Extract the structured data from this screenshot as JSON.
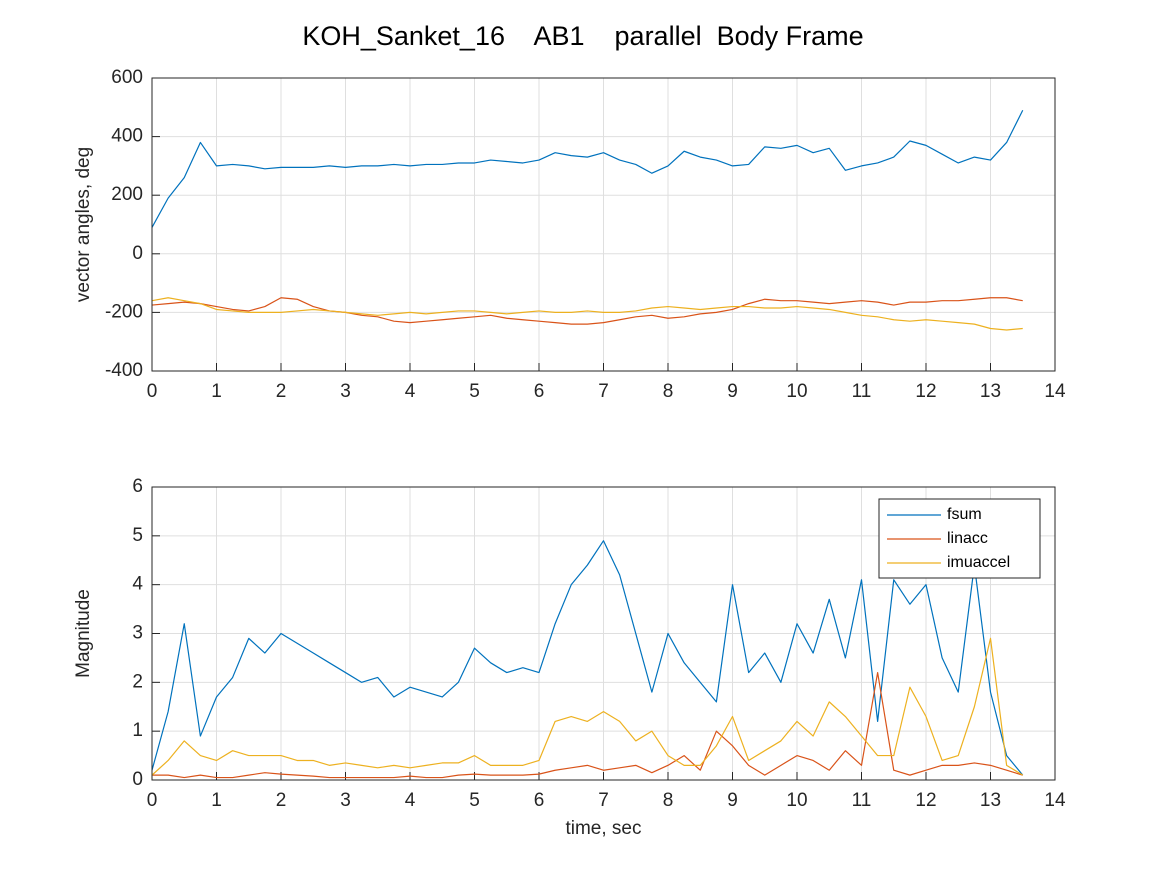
{
  "chart_data": [
    {
      "type": "line",
      "title": "KOH_Sanket_16    AB1    parallel  Body Frame",
      "ylabel": "vector angles, deg",
      "x": [
        0,
        0.25,
        0.5,
        0.75,
        1,
        1.25,
        1.5,
        1.75,
        2,
        2.25,
        2.5,
        2.75,
        3,
        3.25,
        3.5,
        3.75,
        4,
        4.25,
        4.5,
        4.75,
        5,
        5.25,
        5.5,
        5.75,
        6,
        6.25,
        6.5,
        6.75,
        7,
        7.25,
        7.5,
        7.75,
        8,
        8.25,
        8.5,
        8.75,
        9,
        9.25,
        9.5,
        9.75,
        10,
        10.25,
        10.5,
        10.75,
        11,
        11.25,
        11.5,
        11.75,
        12,
        12.25,
        12.5,
        12.75,
        13,
        13.25,
        13.5
      ],
      "series": [
        {
          "color": "#0072BD",
          "values": [
            90,
            190,
            260,
            380,
            300,
            305,
            300,
            290,
            295,
            295,
            295,
            300,
            295,
            300,
            300,
            305,
            300,
            305,
            305,
            310,
            310,
            320,
            315,
            310,
            320,
            345,
            335,
            330,
            345,
            320,
            305,
            275,
            300,
            350,
            330,
            320,
            300,
            305,
            365,
            360,
            370,
            345,
            360,
            285,
            300,
            310,
            330,
            385,
            370,
            340,
            310,
            330,
            320,
            380,
            490
          ]
        },
        {
          "color": "#D95319",
          "values": [
            -175,
            -170,
            -165,
            -170,
            -180,
            -190,
            -195,
            -180,
            -150,
            -155,
            -180,
            -195,
            -200,
            -210,
            -215,
            -230,
            -235,
            -230,
            -225,
            -220,
            -215,
            -210,
            -220,
            -225,
            -230,
            -235,
            -240,
            -240,
            -235,
            -225,
            -215,
            -210,
            -220,
            -215,
            -205,
            -200,
            -190,
            -170,
            -155,
            -160,
            -160,
            -165,
            -170,
            -165,
            -160,
            -165,
            -175,
            -165,
            -165,
            -160,
            -160,
            -155,
            -150,
            -150,
            -160
          ]
        },
        {
          "color": "#EDB120",
          "values": [
            -160,
            -150,
            -160,
            -170,
            -190,
            -195,
            -200,
            -200,
            -200,
            -195,
            -190,
            -195,
            -200,
            -205,
            -210,
            -205,
            -200,
            -205,
            -200,
            -195,
            -195,
            -200,
            -205,
            -200,
            -195,
            -200,
            -200,
            -195,
            -200,
            -200,
            -195,
            -185,
            -180,
            -185,
            -190,
            -185,
            -180,
            -180,
            -185,
            -185,
            -180,
            -185,
            -190,
            -200,
            -210,
            -215,
            -225,
            -230,
            -225,
            -230,
            -235,
            -240,
            -255,
            -260,
            -255
          ]
        }
      ],
      "xlim": [
        0,
        14
      ],
      "xticks": [
        0,
        1,
        2,
        3,
        4,
        5,
        6,
        7,
        8,
        9,
        10,
        11,
        12,
        13,
        14
      ],
      "ylim": [
        -400,
        600
      ],
      "yticks": [
        -400,
        -200,
        0,
        200,
        400,
        600
      ],
      "grid": true
    },
    {
      "type": "line",
      "xlabel": "time, sec",
      "ylabel": "Magnitude",
      "x": [
        0,
        0.25,
        0.5,
        0.75,
        1,
        1.25,
        1.5,
        1.75,
        2,
        2.25,
        2.5,
        2.75,
        3,
        3.25,
        3.5,
        3.75,
        4,
        4.25,
        4.5,
        4.75,
        5,
        5.25,
        5.5,
        5.75,
        6,
        6.25,
        6.5,
        6.75,
        7,
        7.25,
        7.5,
        7.75,
        8,
        8.25,
        8.5,
        8.75,
        9,
        9.25,
        9.5,
        9.75,
        10,
        10.25,
        10.5,
        10.75,
        11,
        11.25,
        11.5,
        11.75,
        12,
        12.25,
        12.5,
        12.75,
        13,
        13.25,
        13.5
      ],
      "series": [
        {
          "name": "fsum",
          "color": "#0072BD",
          "values": [
            0.2,
            1.4,
            3.2,
            0.9,
            1.7,
            2.1,
            2.9,
            2.6,
            3.0,
            2.8,
            2.6,
            2.4,
            2.2,
            2.0,
            2.1,
            1.7,
            1.9,
            1.8,
            1.7,
            2.0,
            2.7,
            2.4,
            2.2,
            2.3,
            2.2,
            3.2,
            4.0,
            4.4,
            4.9,
            4.2,
            3.0,
            1.8,
            3.0,
            2.4,
            2.0,
            1.6,
            4.0,
            2.2,
            2.6,
            2.0,
            3.2,
            2.6,
            3.7,
            2.5,
            4.1,
            1.2,
            4.1,
            3.6,
            4.0,
            2.5,
            1.8,
            4.4,
            1.8,
            0.5,
            0.1
          ]
        },
        {
          "name": "linacc",
          "color": "#D95319",
          "values": [
            0.1,
            0.1,
            0.05,
            0.1,
            0.05,
            0.05,
            0.1,
            0.15,
            0.12,
            0.1,
            0.08,
            0.05,
            0.05,
            0.05,
            0.05,
            0.05,
            0.08,
            0.05,
            0.05,
            0.1,
            0.12,
            0.1,
            0.1,
            0.1,
            0.12,
            0.2,
            0.25,
            0.3,
            0.2,
            0.25,
            0.3,
            0.15,
            0.3,
            0.5,
            0.2,
            1.0,
            0.7,
            0.3,
            0.1,
            0.3,
            0.5,
            0.4,
            0.2,
            0.6,
            0.3,
            2.2,
            0.2,
            0.1,
            0.2,
            0.3,
            0.3,
            0.35,
            0.3,
            0.2,
            0.1
          ]
        },
        {
          "name": "imuaccel",
          "color": "#EDB120",
          "values": [
            0.1,
            0.4,
            0.8,
            0.5,
            0.4,
            0.6,
            0.5,
            0.5,
            0.5,
            0.4,
            0.4,
            0.3,
            0.35,
            0.3,
            0.25,
            0.3,
            0.25,
            0.3,
            0.35,
            0.35,
            0.5,
            0.3,
            0.3,
            0.3,
            0.4,
            1.2,
            1.3,
            1.2,
            1.4,
            1.2,
            0.8,
            1.0,
            0.5,
            0.3,
            0.3,
            0.7,
            1.3,
            0.4,
            0.6,
            0.8,
            1.2,
            0.9,
            1.6,
            1.3,
            0.9,
            0.5,
            0.5,
            1.9,
            1.3,
            0.4,
            0.5,
            1.5,
            2.9,
            0.3,
            0.1
          ]
        }
      ],
      "xlim": [
        0,
        14
      ],
      "xticks": [
        0,
        1,
        2,
        3,
        4,
        5,
        6,
        7,
        8,
        9,
        10,
        11,
        12,
        13,
        14
      ],
      "ylim": [
        0,
        6
      ],
      "yticks": [
        0,
        1,
        2,
        3,
        4,
        5,
        6
      ],
      "grid": true,
      "legend": "northeast"
    }
  ]
}
